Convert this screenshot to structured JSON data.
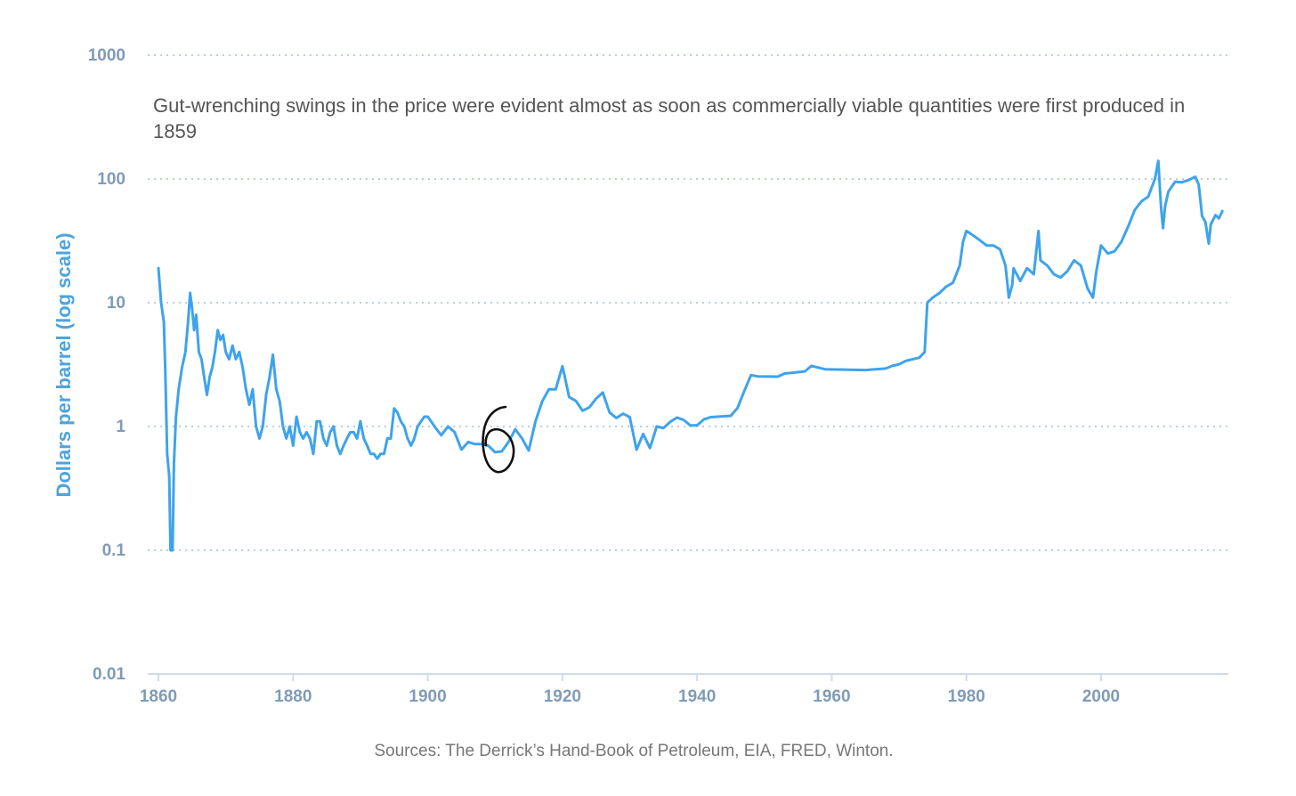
{
  "colors": {
    "line": "#3ea3ec",
    "grid": "#b9cfe3",
    "axis_text": "#7f9bb8",
    "ylabel": "#4da3dd",
    "annotation_text": "#555555",
    "source_text": "#777777",
    "handwriting": "#111111"
  },
  "chart_data": {
    "type": "line",
    "ylabel": "Dollars per barrel (log scale)",
    "xlabel": "",
    "y_scale": "log",
    "ylim": [
      0.01,
      1000
    ],
    "xlim": [
      1858,
      2018
    ],
    "y_ticks": [
      {
        "value": 1000,
        "label": "1000"
      },
      {
        "value": 100,
        "label": "100"
      },
      {
        "value": 10,
        "label": "10"
      },
      {
        "value": 1,
        "label": "1"
      },
      {
        "value": 0.1,
        "label": "0.1"
      },
      {
        "value": 0.01,
        "label": "0.01"
      }
    ],
    "x_ticks": [
      {
        "value": 1860,
        "label": "1860"
      },
      {
        "value": 1880,
        "label": "1880"
      },
      {
        "value": 1900,
        "label": "1900"
      },
      {
        "value": 1920,
        "label": "1920"
      },
      {
        "value": 1940,
        "label": "1940"
      },
      {
        "value": 1960,
        "label": "1960"
      },
      {
        "value": 1980,
        "label": "1980"
      },
      {
        "value": 2000,
        "label": "2000"
      }
    ],
    "grid": "horizontal dotted",
    "annotation": "Gut-wrenching swings in the price were evident almost as soon as commercially viable quantities were first produced in 1859",
    "handwritten_mark": "6",
    "series": [
      {
        "points": [
          [
            1860.0,
            19.0
          ],
          [
            1860.4,
            10.0
          ],
          [
            1860.8,
            7.0
          ],
          [
            1861.0,
            3.0
          ],
          [
            1861.3,
            0.6
          ],
          [
            1861.6,
            0.4
          ],
          [
            1861.8,
            0.1
          ],
          [
            1862.1,
            0.1
          ],
          [
            1862.3,
            0.5
          ],
          [
            1862.6,
            1.2
          ],
          [
            1863.0,
            2.0
          ],
          [
            1863.5,
            3.0
          ],
          [
            1864.0,
            4.0
          ],
          [
            1864.4,
            7.0
          ],
          [
            1864.7,
            12.0
          ],
          [
            1865.0,
            9.0
          ],
          [
            1865.3,
            6.0
          ],
          [
            1865.6,
            8.0
          ],
          [
            1866.0,
            4.0
          ],
          [
            1866.4,
            3.5
          ],
          [
            1866.8,
            2.5
          ],
          [
            1867.2,
            1.8
          ],
          [
            1867.6,
            2.5
          ],
          [
            1868.0,
            3.0
          ],
          [
            1868.4,
            4.0
          ],
          [
            1868.8,
            6.0
          ],
          [
            1869.2,
            5.0
          ],
          [
            1869.6,
            5.5
          ],
          [
            1870.0,
            4.0
          ],
          [
            1870.5,
            3.5
          ],
          [
            1871.0,
            4.5
          ],
          [
            1871.5,
            3.5
          ],
          [
            1872.0,
            4.0
          ],
          [
            1872.5,
            3.0
          ],
          [
            1873.0,
            2.0
          ],
          [
            1873.5,
            1.5
          ],
          [
            1874.0,
            2.0
          ],
          [
            1874.5,
            1.0
          ],
          [
            1875.0,
            0.8
          ],
          [
            1875.5,
            1.0
          ],
          [
            1876.0,
            1.8
          ],
          [
            1876.5,
            2.5
          ],
          [
            1877.0,
            3.8
          ],
          [
            1877.5,
            2.0
          ],
          [
            1878.0,
            1.6
          ],
          [
            1878.5,
            1.0
          ],
          [
            1879.0,
            0.8
          ],
          [
            1879.5,
            1.0
          ],
          [
            1880.0,
            0.7
          ],
          [
            1880.5,
            1.2
          ],
          [
            1881.0,
            0.9
          ],
          [
            1881.5,
            0.8
          ],
          [
            1882.0,
            0.9
          ],
          [
            1882.5,
            0.8
          ],
          [
            1883.0,
            0.6
          ],
          [
            1883.5,
            1.1
          ],
          [
            1884.0,
            1.1
          ],
          [
            1884.5,
            0.8
          ],
          [
            1885.0,
            0.7
          ],
          [
            1885.5,
            0.9
          ],
          [
            1886.0,
            1.0
          ],
          [
            1886.5,
            0.7
          ],
          [
            1887.0,
            0.6
          ],
          [
            1887.5,
            0.7
          ],
          [
            1888.0,
            0.8
          ],
          [
            1888.5,
            0.9
          ],
          [
            1889.0,
            0.9
          ],
          [
            1889.5,
            0.8
          ],
          [
            1890.0,
            1.1
          ],
          [
            1890.5,
            0.8
          ],
          [
            1891.0,
            0.7
          ],
          [
            1891.5,
            0.6
          ],
          [
            1892.0,
            0.6
          ],
          [
            1892.5,
            0.55
          ],
          [
            1893.0,
            0.6
          ],
          [
            1893.5,
            0.6
          ],
          [
            1894.0,
            0.8
          ],
          [
            1894.5,
            0.8
          ],
          [
            1895.0,
            1.4
          ],
          [
            1895.5,
            1.3
          ],
          [
            1896.0,
            1.1
          ],
          [
            1896.5,
            1.0
          ],
          [
            1897.0,
            0.8
          ],
          [
            1897.5,
            0.7
          ],
          [
            1898.0,
            0.8
          ],
          [
            1898.5,
            1.0
          ],
          [
            1899.0,
            1.1
          ],
          [
            1899.5,
            1.2
          ],
          [
            1900.0,
            1.2
          ],
          [
            1900.5,
            1.1
          ],
          [
            1901.0,
            1.0
          ],
          [
            1902.0,
            0.85
          ],
          [
            1903.0,
            1.0
          ],
          [
            1904.0,
            0.9
          ],
          [
            1905.0,
            0.65
          ],
          [
            1906.0,
            0.75
          ],
          [
            1907.0,
            0.72
          ],
          [
            1908.0,
            0.72
          ],
          [
            1909.0,
            0.7
          ],
          [
            1910.0,
            0.62
          ],
          [
            1911.0,
            0.63
          ],
          [
            1912.0,
            0.75
          ],
          [
            1913.0,
            0.95
          ],
          [
            1914.0,
            0.8
          ],
          [
            1915.0,
            0.64
          ],
          [
            1916.0,
            1.1
          ],
          [
            1917.0,
            1.6
          ],
          [
            1918.0,
            2.0
          ],
          [
            1919.0,
            2.0
          ],
          [
            1920.0,
            3.07
          ],
          [
            1921.0,
            1.73
          ],
          [
            1922.0,
            1.61
          ],
          [
            1923.0,
            1.34
          ],
          [
            1924.0,
            1.43
          ],
          [
            1925.0,
            1.68
          ],
          [
            1926.0,
            1.88
          ],
          [
            1927.0,
            1.3
          ],
          [
            1928.0,
            1.17
          ],
          [
            1929.0,
            1.27
          ],
          [
            1930.0,
            1.19
          ],
          [
            1931.0,
            0.65
          ],
          [
            1932.0,
            0.87
          ],
          [
            1933.0,
            0.67
          ],
          [
            1934.0,
            1.0
          ],
          [
            1935.0,
            0.97
          ],
          [
            1936.0,
            1.09
          ],
          [
            1937.0,
            1.18
          ],
          [
            1938.0,
            1.13
          ],
          [
            1939.0,
            1.02
          ],
          [
            1940.0,
            1.02
          ],
          [
            1941.0,
            1.14
          ],
          [
            1942.0,
            1.19
          ],
          [
            1943.0,
            1.2
          ],
          [
            1944.0,
            1.21
          ],
          [
            1945.0,
            1.22
          ],
          [
            1946.0,
            1.41
          ],
          [
            1947.0,
            1.93
          ],
          [
            1948.0,
            2.6
          ],
          [
            1949.0,
            2.54
          ],
          [
            1952.0,
            2.53
          ],
          [
            1953.0,
            2.68
          ],
          [
            1956.0,
            2.79
          ],
          [
            1957.0,
            3.09
          ],
          [
            1959.0,
            2.9
          ],
          [
            1965.0,
            2.86
          ],
          [
            1968.0,
            2.94
          ],
          [
            1969.0,
            3.09
          ],
          [
            1970.0,
            3.18
          ],
          [
            1971.0,
            3.39
          ],
          [
            1973.0,
            3.6
          ],
          [
            1973.8,
            4.0
          ],
          [
            1974.2,
            10.0
          ],
          [
            1975.0,
            11.0
          ],
          [
            1976.0,
            12.0
          ],
          [
            1977.0,
            13.5
          ],
          [
            1978.0,
            14.5
          ],
          [
            1979.0,
            20.0
          ],
          [
            1979.5,
            31.0
          ],
          [
            1980.0,
            38.0
          ],
          [
            1981.0,
            35.0
          ],
          [
            1982.0,
            32.0
          ],
          [
            1983.0,
            29.0
          ],
          [
            1984.0,
            29.0
          ],
          [
            1985.0,
            27.0
          ],
          [
            1985.8,
            20.0
          ],
          [
            1986.3,
            11.0
          ],
          [
            1986.8,
            14.0
          ],
          [
            1987.0,
            19.0
          ],
          [
            1988.0,
            15.0
          ],
          [
            1989.0,
            19.0
          ],
          [
            1990.0,
            17.0
          ],
          [
            1990.7,
            38.0
          ],
          [
            1991.0,
            22.0
          ],
          [
            1992.0,
            20.0
          ],
          [
            1993.0,
            17.0
          ],
          [
            1994.0,
            16.0
          ],
          [
            1995.0,
            18.0
          ],
          [
            1996.0,
            22.0
          ],
          [
            1997.0,
            20.0
          ],
          [
            1998.0,
            13.0
          ],
          [
            1998.8,
            11.0
          ],
          [
            1999.3,
            18.0
          ],
          [
            2000.0,
            29.0
          ],
          [
            2001.0,
            25.0
          ],
          [
            2002.0,
            26.0
          ],
          [
            2003.0,
            31.0
          ],
          [
            2004.0,
            41.0
          ],
          [
            2005.0,
            56.0
          ],
          [
            2006.0,
            66.0
          ],
          [
            2007.0,
            72.0
          ],
          [
            2008.0,
            100.0
          ],
          [
            2008.5,
            140.0
          ],
          [
            2008.9,
            60.0
          ],
          [
            2009.2,
            40.0
          ],
          [
            2009.5,
            60.0
          ],
          [
            2010.0,
            79.0
          ],
          [
            2011.0,
            95.0
          ],
          [
            2012.0,
            94.0
          ],
          [
            2013.0,
            98.0
          ],
          [
            2014.0,
            104.0
          ],
          [
            2014.5,
            90.0
          ],
          [
            2015.0,
            50.0
          ],
          [
            2015.5,
            45.0
          ],
          [
            2016.0,
            30.0
          ],
          [
            2016.3,
            43.0
          ],
          [
            2017.0,
            51.0
          ],
          [
            2017.5,
            48.0
          ],
          [
            2018.0,
            55.0
          ]
        ]
      }
    ]
  },
  "sources": "Sources: The Derrick’s Hand-Book of Petroleum, EIA, FRED, Winton."
}
